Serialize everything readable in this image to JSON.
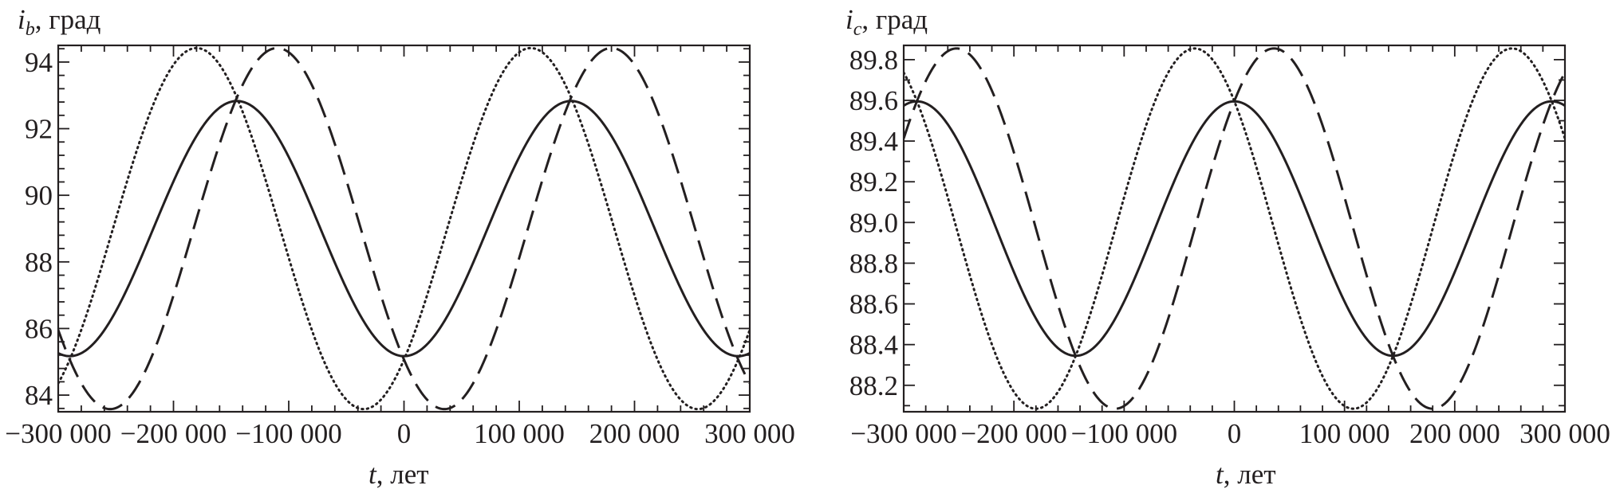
{
  "chart_data": [
    {
      "type": "line",
      "ylabel_symbol": "i",
      "ylabel_subscript": "b",
      "ylabel_unit": ", град",
      "xlabel_symbol": "t",
      "xlabel_unit": ", лет",
      "xlim": [
        -300000,
        300000
      ],
      "ylim": [
        83.5,
        94.5
      ],
      "xticks": [
        -300000,
        -200000,
        -100000,
        0,
        100000,
        200000,
        300000
      ],
      "xtick_labels": [
        "−300 000",
        "−200 000",
        "−100 000",
        "0",
        "100 000",
        "200 000",
        "300 000"
      ],
      "yticks": [
        84,
        86,
        88,
        90,
        92,
        94
      ],
      "ytick_labels": [
        "84",
        "86",
        "88",
        "90",
        "92",
        "94"
      ],
      "series": [
        {
          "name": "solid",
          "style": "solid",
          "mean": 89.0,
          "amplitude": 3.83,
          "period": 290000,
          "phase_x": 145000
        },
        {
          "name": "dotted",
          "style": "dotted",
          "mean": 89.0,
          "amplitude": 5.42,
          "period": 290000,
          "phase_x": 110000
        },
        {
          "name": "dashed",
          "style": "dashed",
          "mean": 89.0,
          "amplitude": 5.42,
          "period": 290000,
          "phase_x": 180000
        }
      ]
    },
    {
      "type": "line",
      "ylabel_symbol": "i",
      "ylabel_subscript": "c",
      "ylabel_unit": ", град",
      "xlabel_symbol": "t",
      "xlabel_unit": ", лет",
      "xlim": [
        -300000,
        300000
      ],
      "ylim": [
        88.07,
        89.87
      ],
      "xticks": [
        -300000,
        -200000,
        -100000,
        0,
        100000,
        200000,
        300000
      ],
      "xtick_labels": [
        "−300 000",
        "−200 000",
        "−100 000",
        "0",
        "100 000",
        "200 000",
        "300 000"
      ],
      "yticks": [
        88.2,
        88.4,
        88.6,
        88.8,
        89.0,
        89.2,
        89.4,
        89.6,
        89.8
      ],
      "ytick_labels": [
        "88.2",
        "88.4",
        "88.6",
        "88.8",
        "89.0",
        "89.2",
        "89.4",
        "89.6",
        "89.8"
      ],
      "series": [
        {
          "name": "solid",
          "style": "solid",
          "mean": 88.97,
          "amplitude": 0.625,
          "period": 288000,
          "phase_x": 0
        },
        {
          "name": "dotted",
          "style": "dotted",
          "mean": 88.97,
          "amplitude": 0.885,
          "period": 288000,
          "phase_x": -36000
        },
        {
          "name": "dashed",
          "style": "dashed",
          "mean": 88.97,
          "amplitude": 0.885,
          "period": 288000,
          "phase_x": 36000
        }
      ]
    }
  ]
}
